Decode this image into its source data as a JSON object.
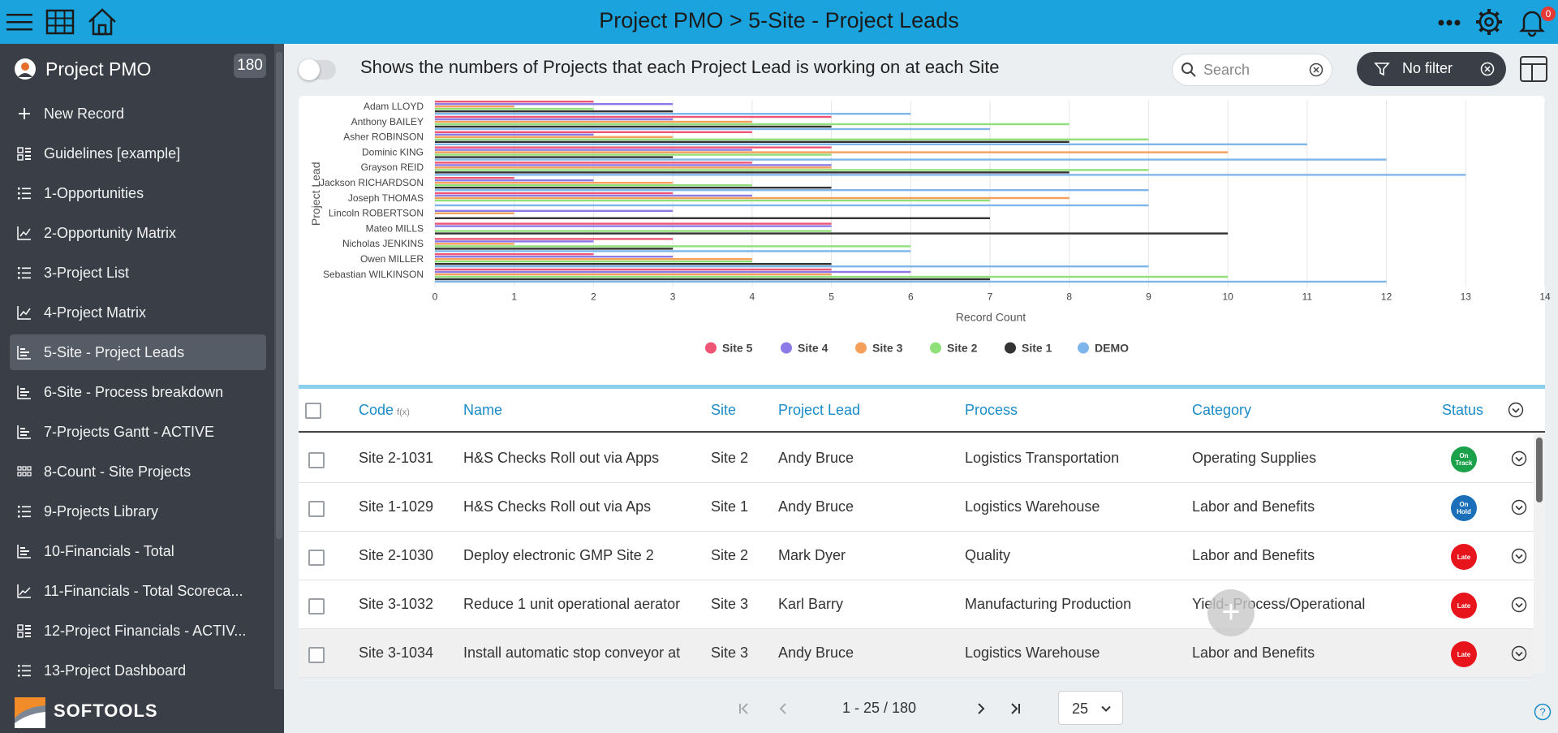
{
  "header": {
    "title": "Project PMO > 5-Site - Project Leads",
    "notification_count": "0"
  },
  "sidebar": {
    "app_name": "Project PMO",
    "record_count": "180",
    "items": [
      {
        "label": "New Record",
        "icon": "plus-icon"
      },
      {
        "label": "Guidelines [example]",
        "icon": "card-view-icon"
      },
      {
        "label": "1-Opportunities",
        "icon": "list-view-icon"
      },
      {
        "label": "2-Opportunity Matrix",
        "icon": "chart-icon"
      },
      {
        "label": "3-Project List",
        "icon": "list-view-icon"
      },
      {
        "label": "4-Project Matrix",
        "icon": "chart-icon"
      },
      {
        "label": "5-Site - Project Leads",
        "icon": "bar-chart-icon",
        "active": true
      },
      {
        "label": "6-Site - Process breakdown",
        "icon": "bar-chart-icon"
      },
      {
        "label": "7-Projects Gantt - ACTIVE",
        "icon": "bar-chart-icon"
      },
      {
        "label": "8-Count - Site Projects",
        "icon": "grid-view-icon"
      },
      {
        "label": "9-Projects Library",
        "icon": "list-view-icon"
      },
      {
        "label": "10-Financials - Total",
        "icon": "bar-chart-icon"
      },
      {
        "label": "11-Financials - Total Scoreca...",
        "icon": "line-chart-icon"
      },
      {
        "label": "12-Project Financials - ACTIV...",
        "icon": "card-view-icon"
      },
      {
        "label": "13-Project Dashboard",
        "icon": "list-view-icon"
      }
    ],
    "brand": "SOFTOOLS"
  },
  "toolbar": {
    "description": "Shows the numbers of Projects that each Project Lead is working on at each Site",
    "search_placeholder": "Search",
    "filter_label": "No filter"
  },
  "chart_data": {
    "type": "bar",
    "orientation": "horizontal",
    "stacked": false,
    "xlabel": "Record Count",
    "ylabel": "Project Lead",
    "xlim": [
      0,
      14
    ],
    "xticks": [
      "0",
      "1",
      "2",
      "3",
      "4",
      "5",
      "6",
      "7",
      "8",
      "9",
      "10",
      "11",
      "12",
      "13",
      "14"
    ],
    "grid": true,
    "legend_position": "bottom",
    "categories": [
      "Adam LLOYD",
      "Anthony BAILEY",
      "Asher ROBINSON",
      "Dominic KING",
      "Grayson REID",
      "Jackson RICHARDSON",
      "Joseph THOMAS",
      "Lincoln ROBERTSON",
      "Mateo MILLS",
      "Nicholas JENKINS",
      "Owen MILLER",
      "Sebastian WILKINSON"
    ],
    "series": [
      {
        "name": "Site 5",
        "color": "#ef5675",
        "values": [
          2,
          5,
          4,
          5,
          4,
          1,
          3,
          0,
          5,
          3,
          2,
          5
        ]
      },
      {
        "name": "Site 4",
        "color": "#8c7ae6",
        "values": [
          3,
          3,
          2,
          4,
          5,
          2,
          4,
          3,
          5,
          2,
          3,
          6
        ]
      },
      {
        "name": "Site 3",
        "color": "#f5a05a",
        "values": [
          1,
          4,
          3,
          10,
          5,
          3,
          8,
          1,
          0,
          1,
          4,
          5
        ]
      },
      {
        "name": "Site 2",
        "color": "#90e07a",
        "values": [
          2,
          8,
          9,
          5,
          9,
          4,
          7,
          0,
          5,
          6,
          4,
          10
        ]
      },
      {
        "name": "Site 1",
        "color": "#333333",
        "values": [
          3,
          5,
          8,
          3,
          8,
          5,
          0,
          7,
          10,
          3,
          5,
          7
        ]
      },
      {
        "name": "DEMO",
        "color": "#7eb6ec",
        "values": [
          6,
          7,
          11,
          12,
          13,
          9,
          9,
          0,
          0,
          6,
          9,
          12
        ]
      }
    ]
  },
  "table": {
    "columns": {
      "code": "Code",
      "code_suffix": "f(x)",
      "name": "Name",
      "site": "Site",
      "lead": "Project Lead",
      "process": "Process",
      "category": "Category",
      "status": "Status"
    },
    "rows": [
      {
        "code": "Site 2-1031",
        "name": "H&S Checks Roll out via Apps",
        "site": "Site 2",
        "lead": "Andy Bruce",
        "process": "Logistics Transportation",
        "category": "Operating Supplies",
        "status": "On Track",
        "status_color": "#1aa14a"
      },
      {
        "code": "Site 1-1029",
        "name": "H&S Checks Roll out via Aps",
        "site": "Site 1",
        "lead": "Andy Bruce",
        "process": "Logistics Warehouse",
        "category": "Labor and Benefits",
        "status": "On Hold",
        "status_color": "#1b6fb8"
      },
      {
        "code": "Site 2-1030",
        "name": "Deploy electronic GMP Site 2",
        "site": "Site 2",
        "lead": "Mark Dyer",
        "process": "Quality",
        "category": "Labor and Benefits",
        "status": "Late",
        "status_color": "#e8141c"
      },
      {
        "code": "Site 3-1032",
        "name": "Reduce 1 unit operational aerator",
        "site": "Site 3",
        "lead": "Karl Barry",
        "process": "Manufacturing Production",
        "category": "Yield- Process/Operational",
        "status": "Late",
        "status_color": "#e8141c"
      },
      {
        "code": "Site 3-1034",
        "name": "Install automatic stop conveyor at",
        "site": "Site 3",
        "lead": "Andy Bruce",
        "process": "Logistics Warehouse",
        "category": "Labor and Benefits",
        "status": "Late",
        "status_color": "#e8141c"
      }
    ]
  },
  "pager": {
    "range": "1 - 25 / 180",
    "page_size": "25"
  }
}
